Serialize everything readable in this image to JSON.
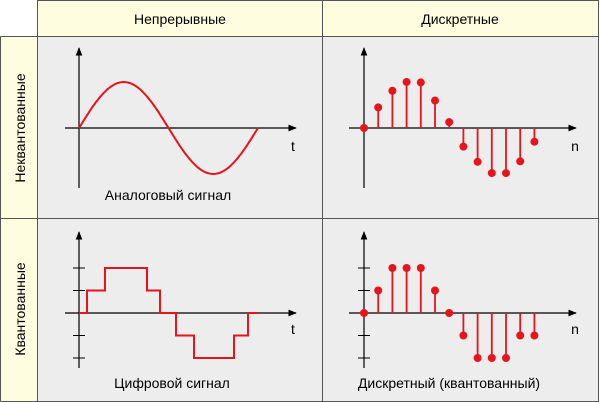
{
  "columns": {
    "continuous": "Непрерывные",
    "discrete": "Дискретные"
  },
  "rows": {
    "unquantized": "Неквантованные",
    "quantized": "Квантованные"
  },
  "panels": {
    "analog": {
      "caption": "Аналоговый сигнал",
      "axis_label": "t"
    },
    "sampled": {
      "caption": "",
      "axis_label": "n"
    },
    "digital": {
      "caption": "Цифровой сигнал",
      "axis_label": "t"
    },
    "discrete": {
      "caption": "Дискретный (квантованный)",
      "axis_label": "n"
    }
  },
  "colors": {
    "signal": "#e8141c",
    "header_bg": "#fffde0",
    "body_bg": "#ededed",
    "border": "#555555",
    "axis": "#000000"
  },
  "chart_data": [
    {
      "type": "line",
      "name": "analog",
      "x": [
        0,
        1
      ],
      "function": "sin(2*pi*x)",
      "xlabel": "t"
    },
    {
      "type": "scatter",
      "name": "sampled",
      "x": [
        0,
        1,
        2,
        3,
        4,
        5,
        6,
        7,
        8,
        9,
        10,
        11,
        12
      ],
      "values": [
        0,
        0.42,
        0.76,
        0.94,
        0.93,
        0.56,
        0.12,
        -0.38,
        -0.69,
        -0.92,
        -0.92,
        -0.68,
        -0.28
      ],
      "xlabel": "n"
    },
    {
      "type": "line",
      "name": "digital",
      "step": true,
      "levels": [
        0,
        1,
        2,
        1,
        0,
        -1,
        -2,
        -1,
        0
      ],
      "tick_levels": [
        -2,
        -1,
        0,
        1,
        2
      ],
      "xlabel": "t"
    },
    {
      "type": "scatter",
      "name": "discrete",
      "x": [
        0,
        1,
        2,
        3,
        4,
        5,
        6,
        7,
        8,
        9,
        10,
        11,
        12
      ],
      "values": [
        0,
        1,
        2,
        2,
        2,
        1,
        0,
        -1,
        -2,
        -2,
        -2,
        -1,
        -1
      ],
      "tick_levels": [
        -2,
        -1,
        0,
        1,
        2
      ],
      "xlabel": "n"
    }
  ]
}
